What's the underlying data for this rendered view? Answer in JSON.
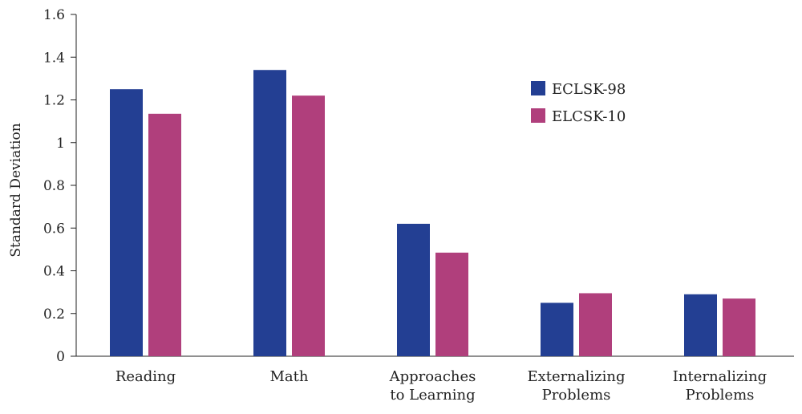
{
  "chart_data": {
    "type": "bar",
    "categories": [
      [
        "Reading"
      ],
      [
        "Math"
      ],
      [
        "Approaches",
        "to Learning"
      ],
      [
        "Externalizing",
        "Problems"
      ],
      [
        "Internalizing",
        "Problems"
      ]
    ],
    "series": [
      {
        "name": "ECLSK-98",
        "color": "#233f93",
        "values": [
          1.25,
          1.34,
          0.62,
          0.25,
          0.29
        ]
      },
      {
        "name": "ELCSK-10",
        "color": "#b03f7c",
        "values": [
          1.135,
          1.22,
          0.485,
          0.295,
          0.27
        ]
      }
    ],
    "title": "",
    "xlabel": "",
    "ylabel": "Standard Deviation",
    "ylim": [
      0,
      1.6
    ],
    "yticks": [
      "0",
      "0.2",
      "0.4",
      "0.6",
      "0.8",
      "1",
      "1.2",
      "1.4",
      "1.6"
    ],
    "grid": false,
    "legend_position": "top-right"
  }
}
